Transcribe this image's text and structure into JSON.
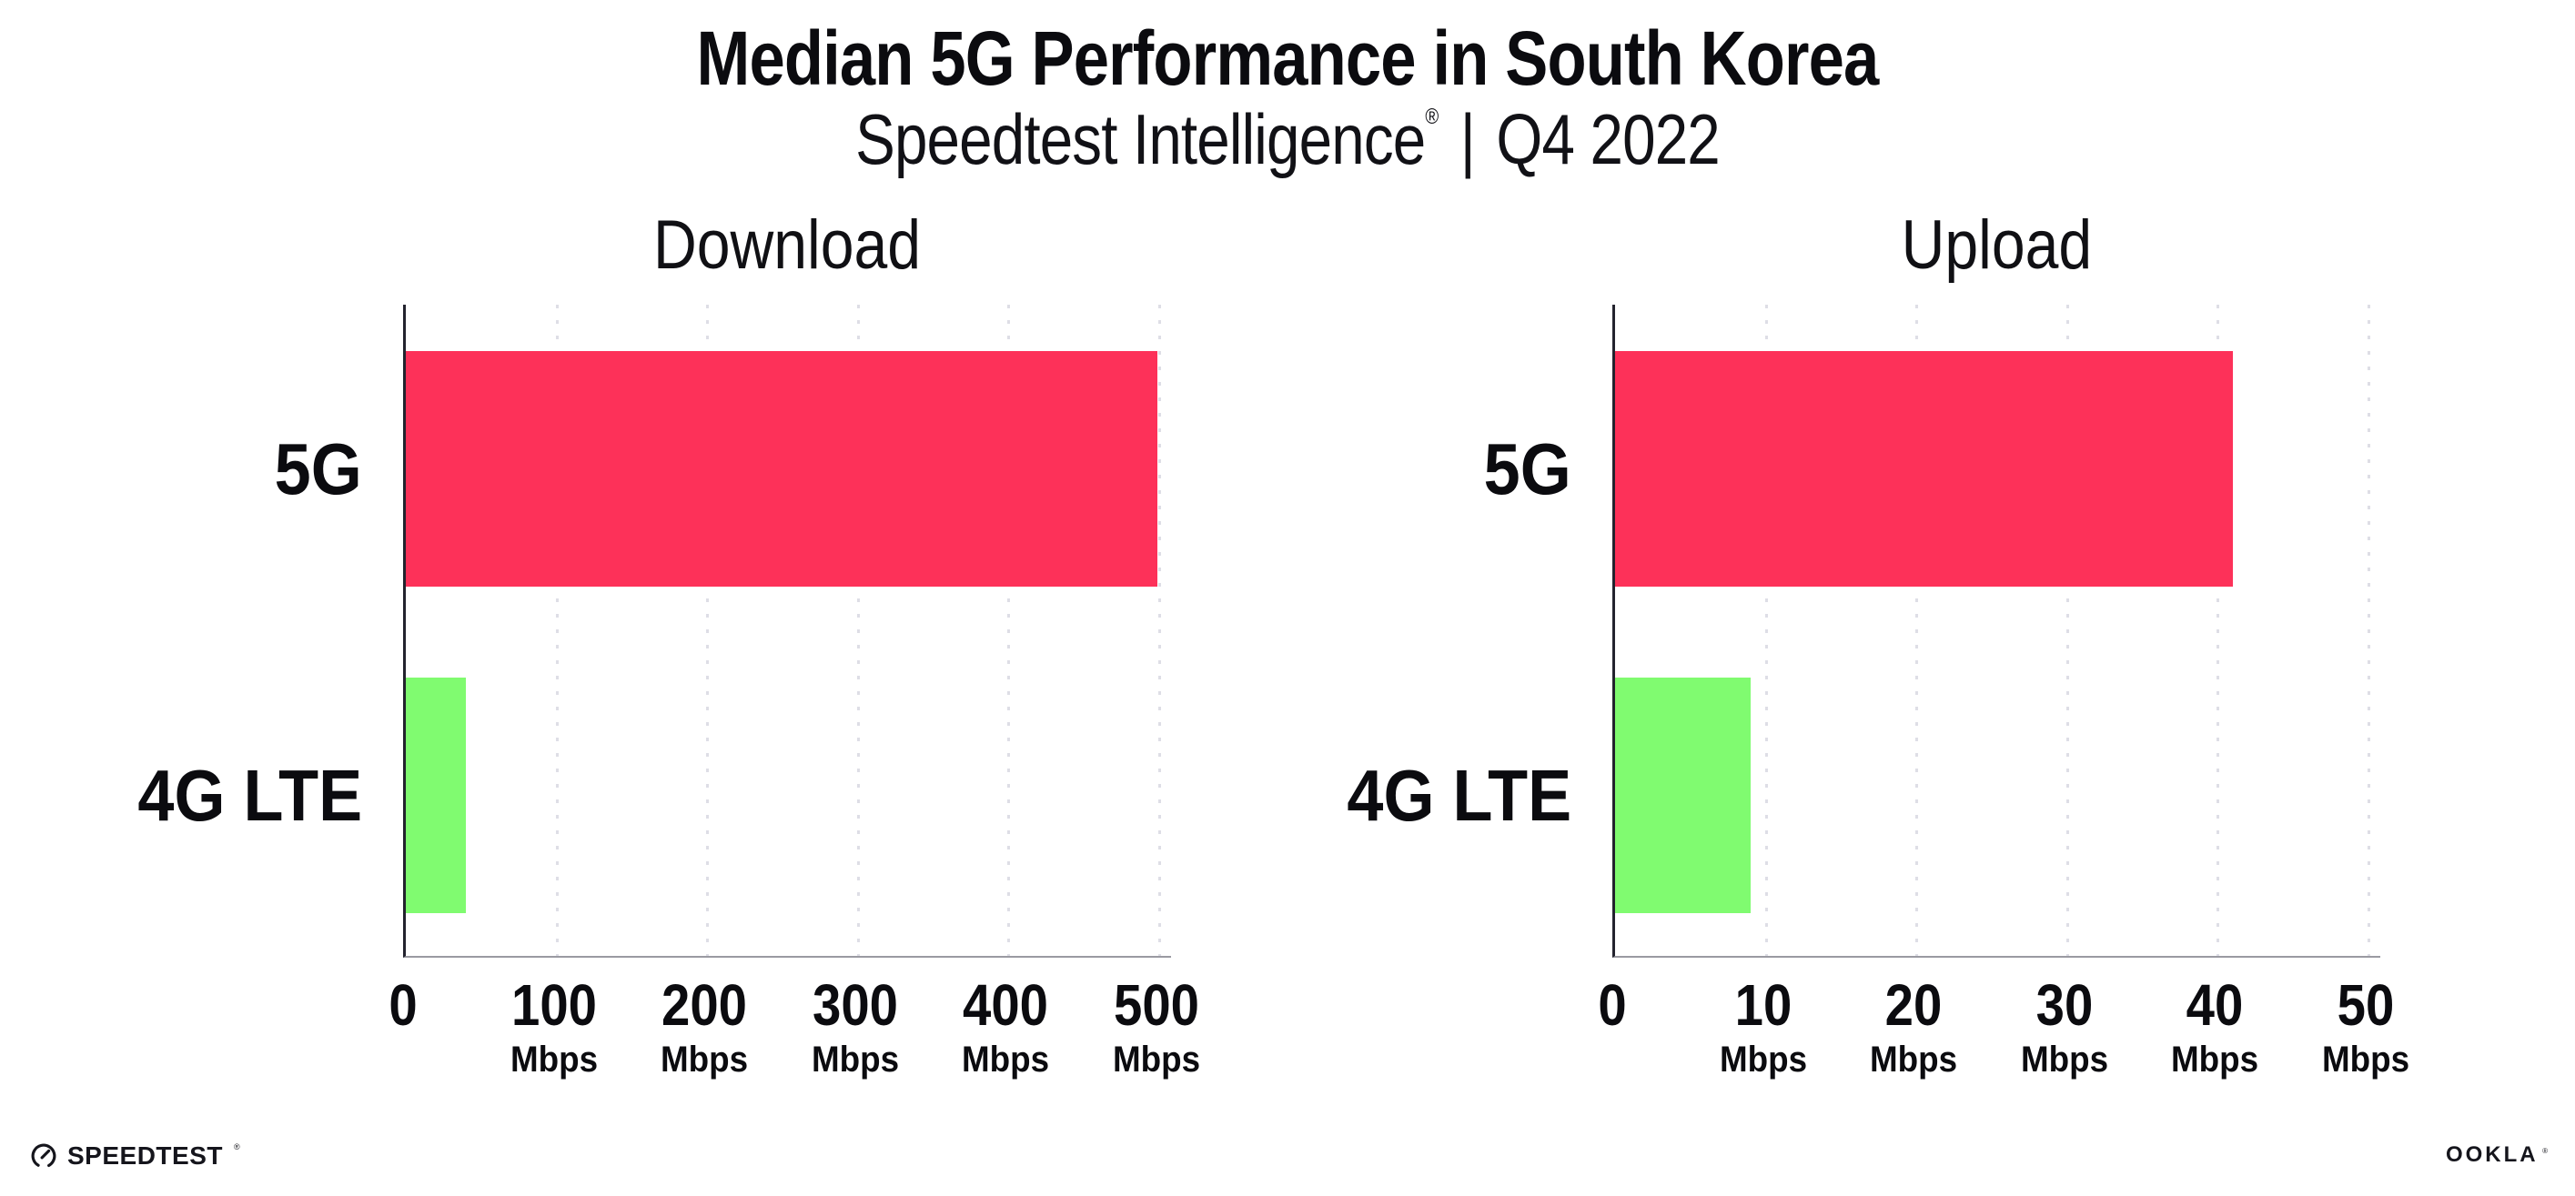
{
  "header": {
    "title": "Median 5G Performance in South Korea",
    "brand": "Speedtest Intelligence",
    "registered_mark": "®",
    "divider": "|",
    "period": "Q4 2022"
  },
  "chart_data": [
    {
      "type": "bar",
      "orientation": "horizontal",
      "title": "Download",
      "categories": [
        "5G",
        "4G LTE"
      ],
      "values": [
        499,
        40
      ],
      "value_unit": "Mbps",
      "xlim": [
        0,
        500
      ],
      "xticks": [
        {
          "value": 0,
          "label": "0",
          "unit": ""
        },
        {
          "value": 100,
          "label": "100",
          "unit": "Mbps"
        },
        {
          "value": 200,
          "label": "200",
          "unit": "Mbps"
        },
        {
          "value": 300,
          "label": "300",
          "unit": "Mbps"
        },
        {
          "value": 400,
          "label": "400",
          "unit": "Mbps"
        },
        {
          "value": 500,
          "label": "500",
          "unit": "Mbps"
        }
      ],
      "bar_colors": [
        "#FD3159",
        "#80FB70"
      ],
      "grid": "dotted-vertical",
      "legend": "none"
    },
    {
      "type": "bar",
      "orientation": "horizontal",
      "title": "Upload",
      "categories": [
        "5G",
        "4G LTE"
      ],
      "values": [
        41,
        9
      ],
      "value_unit": "Mbps",
      "xlim": [
        0,
        50
      ],
      "xticks": [
        {
          "value": 0,
          "label": "0",
          "unit": ""
        },
        {
          "value": 10,
          "label": "10",
          "unit": "Mbps"
        },
        {
          "value": 20,
          "label": "20",
          "unit": "Mbps"
        },
        {
          "value": 30,
          "label": "30",
          "unit": "Mbps"
        },
        {
          "value": 40,
          "label": "40",
          "unit": "Mbps"
        },
        {
          "value": 50,
          "label": "50",
          "unit": "Mbps"
        }
      ],
      "bar_colors": [
        "#FD3159",
        "#80FB70"
      ],
      "grid": "dotted-vertical",
      "legend": "none"
    }
  ],
  "footer": {
    "speedtest_logo_text": "SPEEDTEST",
    "speedtest_registered": "®",
    "ookla_logo_text": "OOKLA",
    "ookla_registered": "®"
  },
  "colors": {
    "bar_5g": "#FD3159",
    "bar_4g_lte": "#80FB70",
    "axis_line": "#23232E",
    "baseline": "#9A9AA2",
    "gridline": "#DEDEE6",
    "text": "#0B0B0F",
    "background": "#FFFFFF"
  }
}
